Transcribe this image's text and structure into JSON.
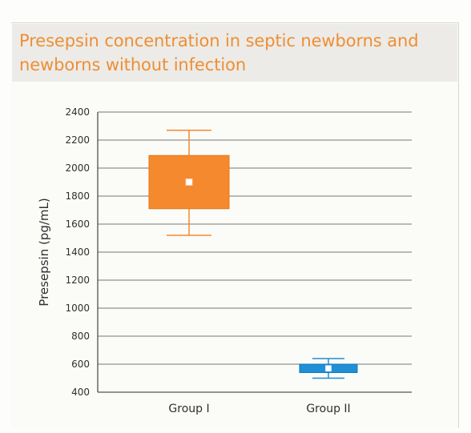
{
  "title": "Presepsin concentration in septic newborns and newborns without infection",
  "chart_data": {
    "type": "box",
    "title": "Presepsin concentration in septic newborns and newborns without infection",
    "ylabel": "Presepsin (pg/mL)",
    "xlabel": "",
    "ylim": [
      400,
      2400
    ],
    "yticks": [
      400,
      600,
      800,
      1000,
      1200,
      1400,
      1600,
      1800,
      2000,
      2200,
      2400
    ],
    "grid": true,
    "categories": [
      "Group I",
      "Group II"
    ],
    "boxes": [
      {
        "category": "Group I",
        "min": 1520,
        "q1": 1710,
        "median": 1900,
        "q3": 2090,
        "max": 2270,
        "color": "#f5892e"
      },
      {
        "category": "Group II",
        "min": 500,
        "q1": 540,
        "median": 570,
        "q3": 600,
        "max": 640,
        "color": "#1f8fd6"
      }
    ]
  }
}
